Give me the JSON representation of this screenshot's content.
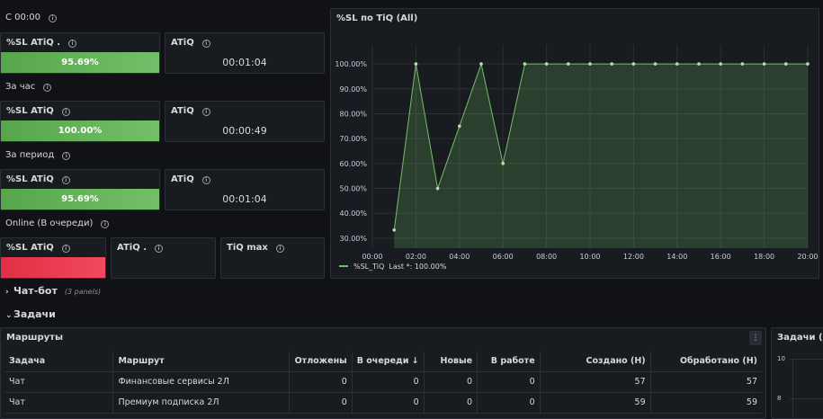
{
  "sections": {
    "since_midnight": "С 00:00",
    "per_hour": "За час",
    "per_period": "За период",
    "online": "Online (В очереди)"
  },
  "stats": {
    "since_midnight": {
      "sl_title": "%SL ATiQ .",
      "sl_value": "95.69%",
      "atiq_title": "ATiQ",
      "atiq_value": "00:01:04"
    },
    "per_hour": {
      "sl_title": "%SL ATiQ",
      "sl_value": "100.00%",
      "atiq_title": "ATiQ",
      "atiq_value": "00:00:49"
    },
    "per_period": {
      "sl_title": "%SL ATiQ",
      "sl_value": "95.69%",
      "atiq_title": "ATiQ",
      "atiq_value": "00:01:04"
    },
    "online": {
      "sl_title": "%SL ATiQ",
      "atiq_title": "ATiQ .",
      "tiqmax_title": "TiQ max"
    }
  },
  "colors": {
    "green": "#73bf69",
    "red": "#f2495c",
    "series": "#73bf69",
    "background": "#111217",
    "panel": "#181b1f"
  },
  "chart_data": {
    "type": "area",
    "title": "%SL по TiQ (All)",
    "x": [
      "01:00",
      "02:00",
      "03:00",
      "04:00",
      "05:00",
      "06:00",
      "07:00",
      "08:00",
      "09:00",
      "10:00",
      "11:00",
      "12:00",
      "13:00",
      "14:00",
      "15:00",
      "16:00",
      "17:00",
      "18:00",
      "19:00",
      "20:00"
    ],
    "x_ticks": [
      "00:00",
      "02:00",
      "04:00",
      "06:00",
      "08:00",
      "10:00",
      "12:00",
      "14:00",
      "16:00",
      "18:00",
      "20:00"
    ],
    "y_ticks": [
      "30.00%",
      "40.00%",
      "50.00%",
      "60.00%",
      "70.00%",
      "80.00%",
      "90.00%",
      "100.00%"
    ],
    "ylim": [
      26,
      104
    ],
    "series": [
      {
        "name": "%SL_TiQ",
        "values": [
          33.3,
          100,
          50,
          75,
          100,
          60,
          100,
          100,
          100,
          100,
          100,
          100,
          100,
          100,
          100,
          100,
          100,
          100,
          100,
          100
        ]
      }
    ],
    "legend": {
      "position": "bottom-left",
      "label": "%SL_TiQ",
      "stat_text": "Last *: 100.00%"
    },
    "grid": true
  },
  "rows": {
    "chatbot": {
      "title": "Чат-бот",
      "count": "(3 panels)"
    },
    "tasks": {
      "title": "Задачи"
    }
  },
  "routes_table": {
    "title": "Маршруты",
    "menu_icon": "kebab-menu-icon",
    "columns": [
      "Задача",
      "Маршрут",
      "Отложены",
      "В очереди",
      "Новые",
      "В работе",
      "Создано (Н)",
      "Обработано (Н)"
    ],
    "sorted_column_arrow": "↓",
    "rows": [
      [
        "Чат",
        "Финансовые сервисы 2Л",
        "0",
        "0",
        "0",
        "0",
        "57",
        "57"
      ],
      [
        "Чат",
        "Премиум подписка 2Л",
        "0",
        "0",
        "0",
        "0",
        "59",
        "59"
      ]
    ]
  },
  "tasks_chart": {
    "title": "Задачи (All)",
    "y_ticks": [
      "10",
      "8"
    ]
  }
}
